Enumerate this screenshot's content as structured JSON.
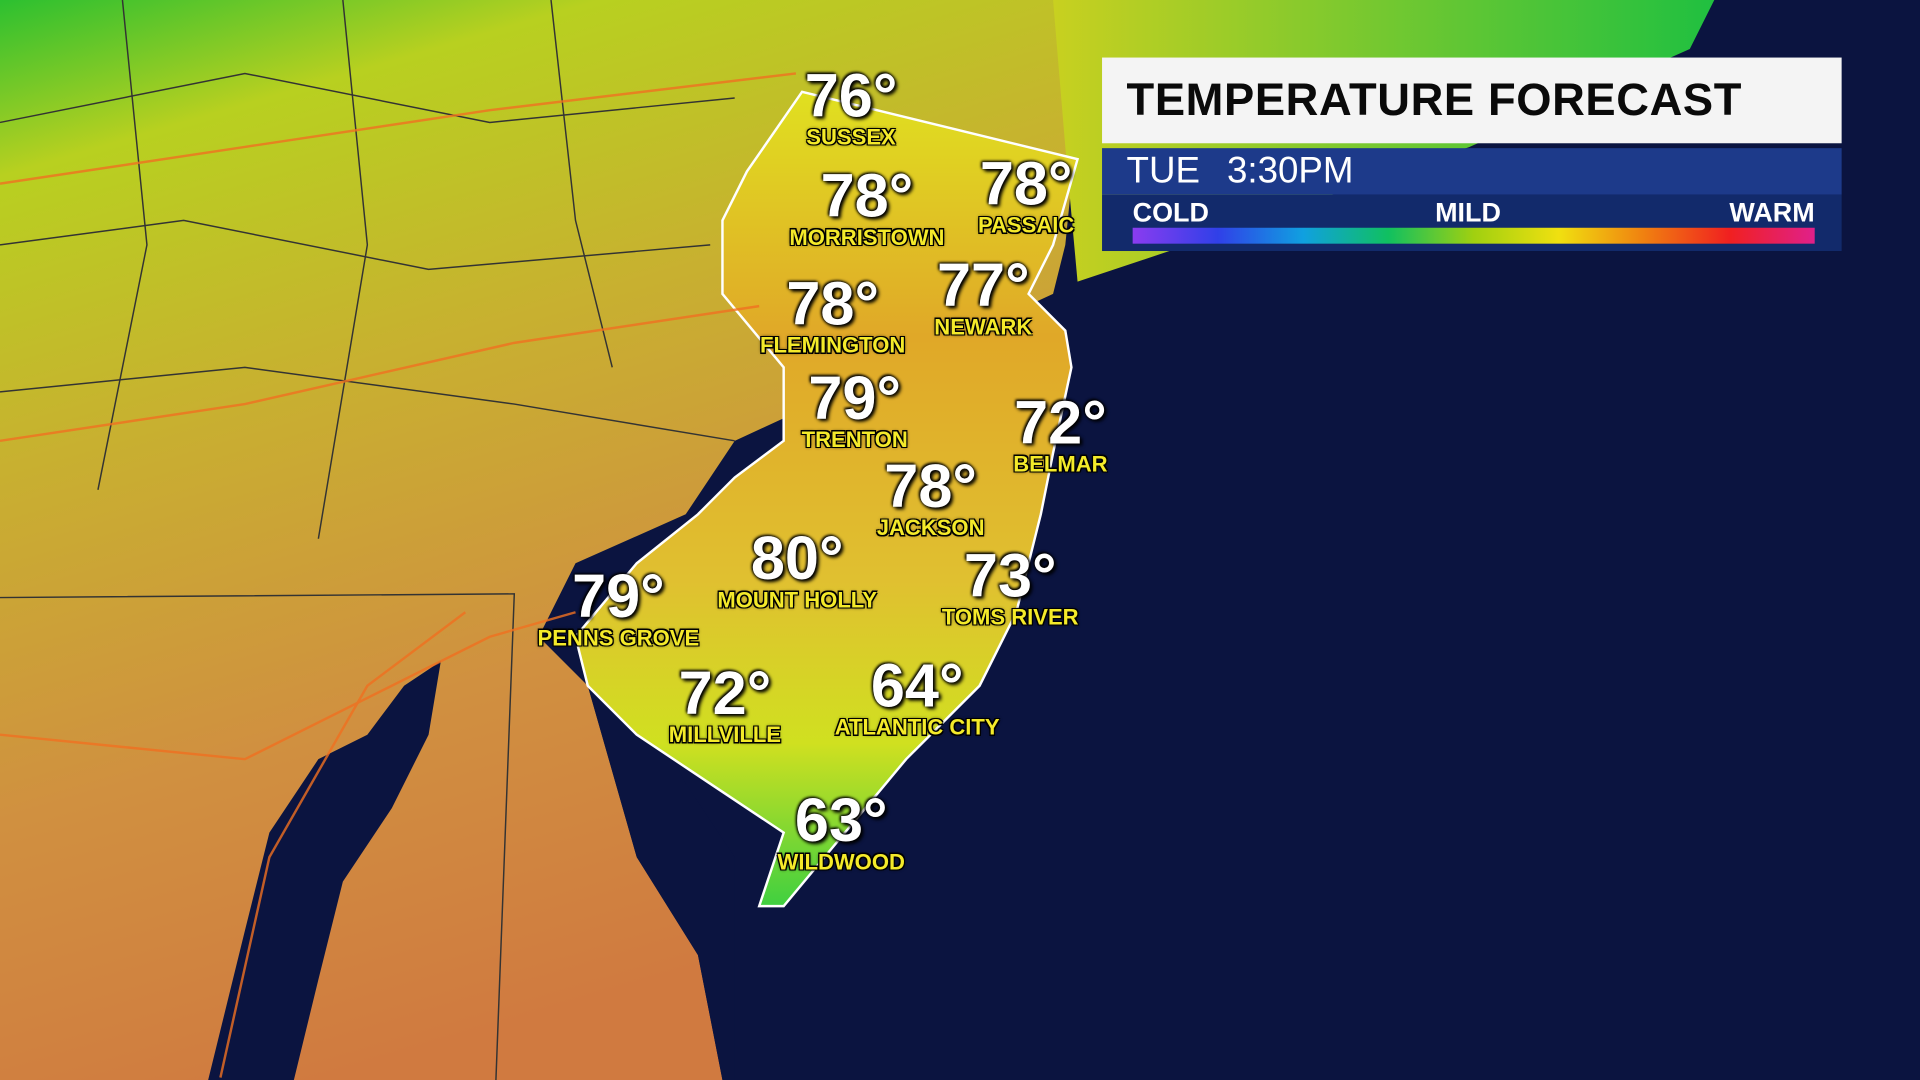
{
  "panel": {
    "title": "TEMPERATURE FORECAST",
    "day": "TUE",
    "time": "3:30PM",
    "scale_labels": {
      "cold": "COLD",
      "mild": "MILD",
      "warm": "WARM"
    },
    "scale_colors": [
      "#8a3cf0",
      "#3040e8",
      "#10a0e0",
      "#10c060",
      "#a0d010",
      "#f0e010",
      "#f08010",
      "#f02020",
      "#e0208a"
    ]
  },
  "cities": [
    {
      "name": "SUSSEX",
      "temp": "76°"
    },
    {
      "name": "MORRISTOWN",
      "temp": "78°"
    },
    {
      "name": "PASSAIC",
      "temp": "78°"
    },
    {
      "name": "FLEMINGTON",
      "temp": "78°"
    },
    {
      "name": "NEWARK",
      "temp": "77°"
    },
    {
      "name": "TRENTON",
      "temp": "79°"
    },
    {
      "name": "BELMAR",
      "temp": "72°"
    },
    {
      "name": "JACKSON",
      "temp": "78°"
    },
    {
      "name": "MOUNT HOLLY",
      "temp": "80°"
    },
    {
      "name": "TOMS RIVER",
      "temp": "73°"
    },
    {
      "name": "PENNS GROVE",
      "temp": "79°"
    },
    {
      "name": "MILLVILLE",
      "temp": "72°"
    },
    {
      "name": "ATLANTIC CITY",
      "temp": "64°"
    },
    {
      "name": "WILDWOOD",
      "temp": "63°"
    }
  ]
}
